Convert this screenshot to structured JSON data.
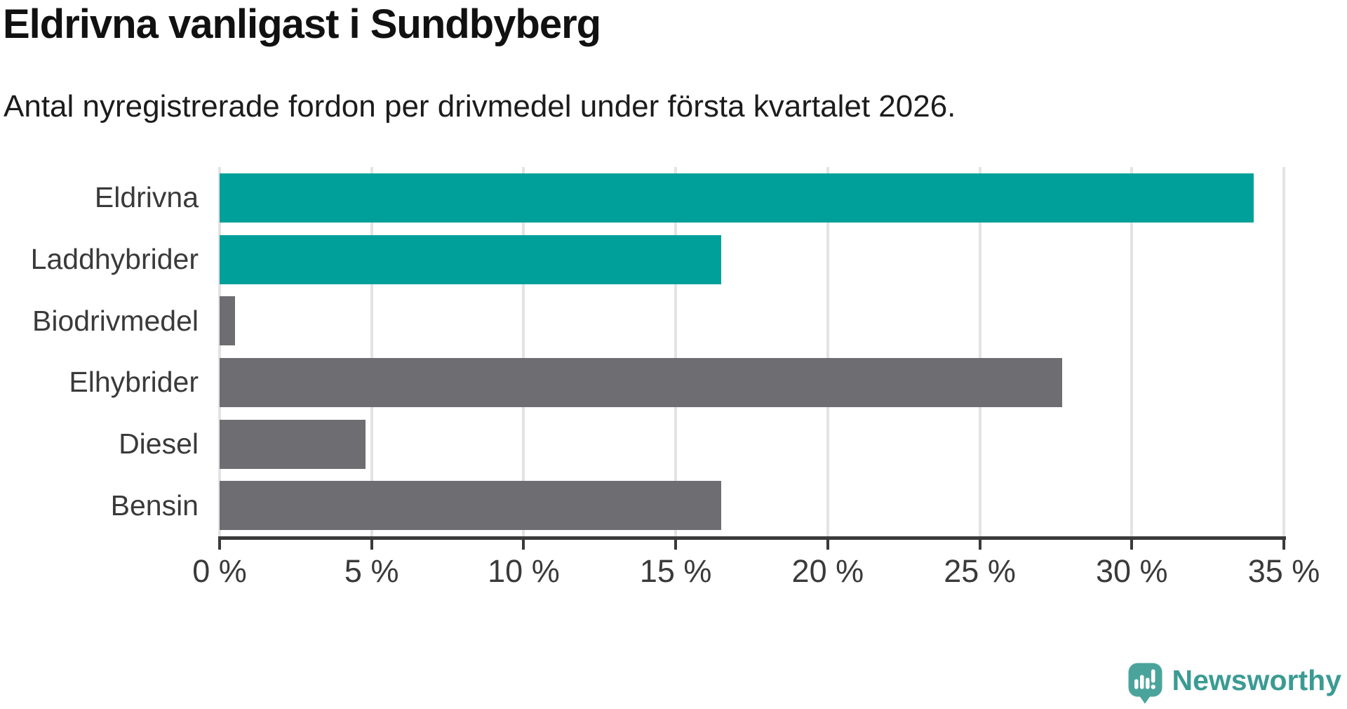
{
  "title": "Eldrivna vanligast i Sundbyberg",
  "subtitle": "Antal nyregistrerade fordon per drivmedel under första kvartalet 2026.",
  "chart_data": {
    "type": "bar",
    "orientation": "horizontal",
    "title": "Eldrivna vanligast i Sundbyberg",
    "subtitle": "Antal nyregistrerade fordon per drivmedel under första kvartalet 2026.",
    "categories": [
      "Eldrivna",
      "Laddhybrider",
      "Biodrivmedel",
      "Elhybrider",
      "Diesel",
      "Bensin"
    ],
    "values": [
      34.0,
      16.5,
      0.5,
      27.7,
      4.8,
      16.5
    ],
    "unit": "%",
    "bars": [
      {
        "label": "Eldrivna",
        "value": 34.0,
        "color": "#00a09a"
      },
      {
        "label": "Laddhybrider",
        "value": 16.5,
        "color": "#00a09a"
      },
      {
        "label": "Biodrivmedel",
        "value": 0.5,
        "color": "#6e6e72"
      },
      {
        "label": "Elhybrider",
        "value": 27.7,
        "color": "#6e6e72"
      },
      {
        "label": "Diesel",
        "value": 4.8,
        "color": "#6e6e72"
      },
      {
        "label": "Bensin",
        "value": 16.5,
        "color": "#6e6e72"
      }
    ],
    "xlim": [
      0,
      35
    ],
    "xticks": [
      0,
      5,
      10,
      15,
      20,
      25,
      30,
      35
    ],
    "xtick_labels": [
      "0 %",
      "5 %",
      "10 %",
      "15 %",
      "20 %",
      "25 %",
      "30 %",
      "35 %"
    ],
    "grid": true,
    "highlight_color": "#00a09a",
    "default_color": "#6e6e72",
    "axis_color": "#3a3a3a",
    "gridline_color": "#e3e3e3",
    "legend_position": "none"
  },
  "branding": {
    "logo_text": "Newsworthy",
    "logo_icon": "speech-bubble-bar-chart-icon",
    "logo_text_color": "#3b9b93",
    "logo_icon_color": "#4ba49c"
  }
}
